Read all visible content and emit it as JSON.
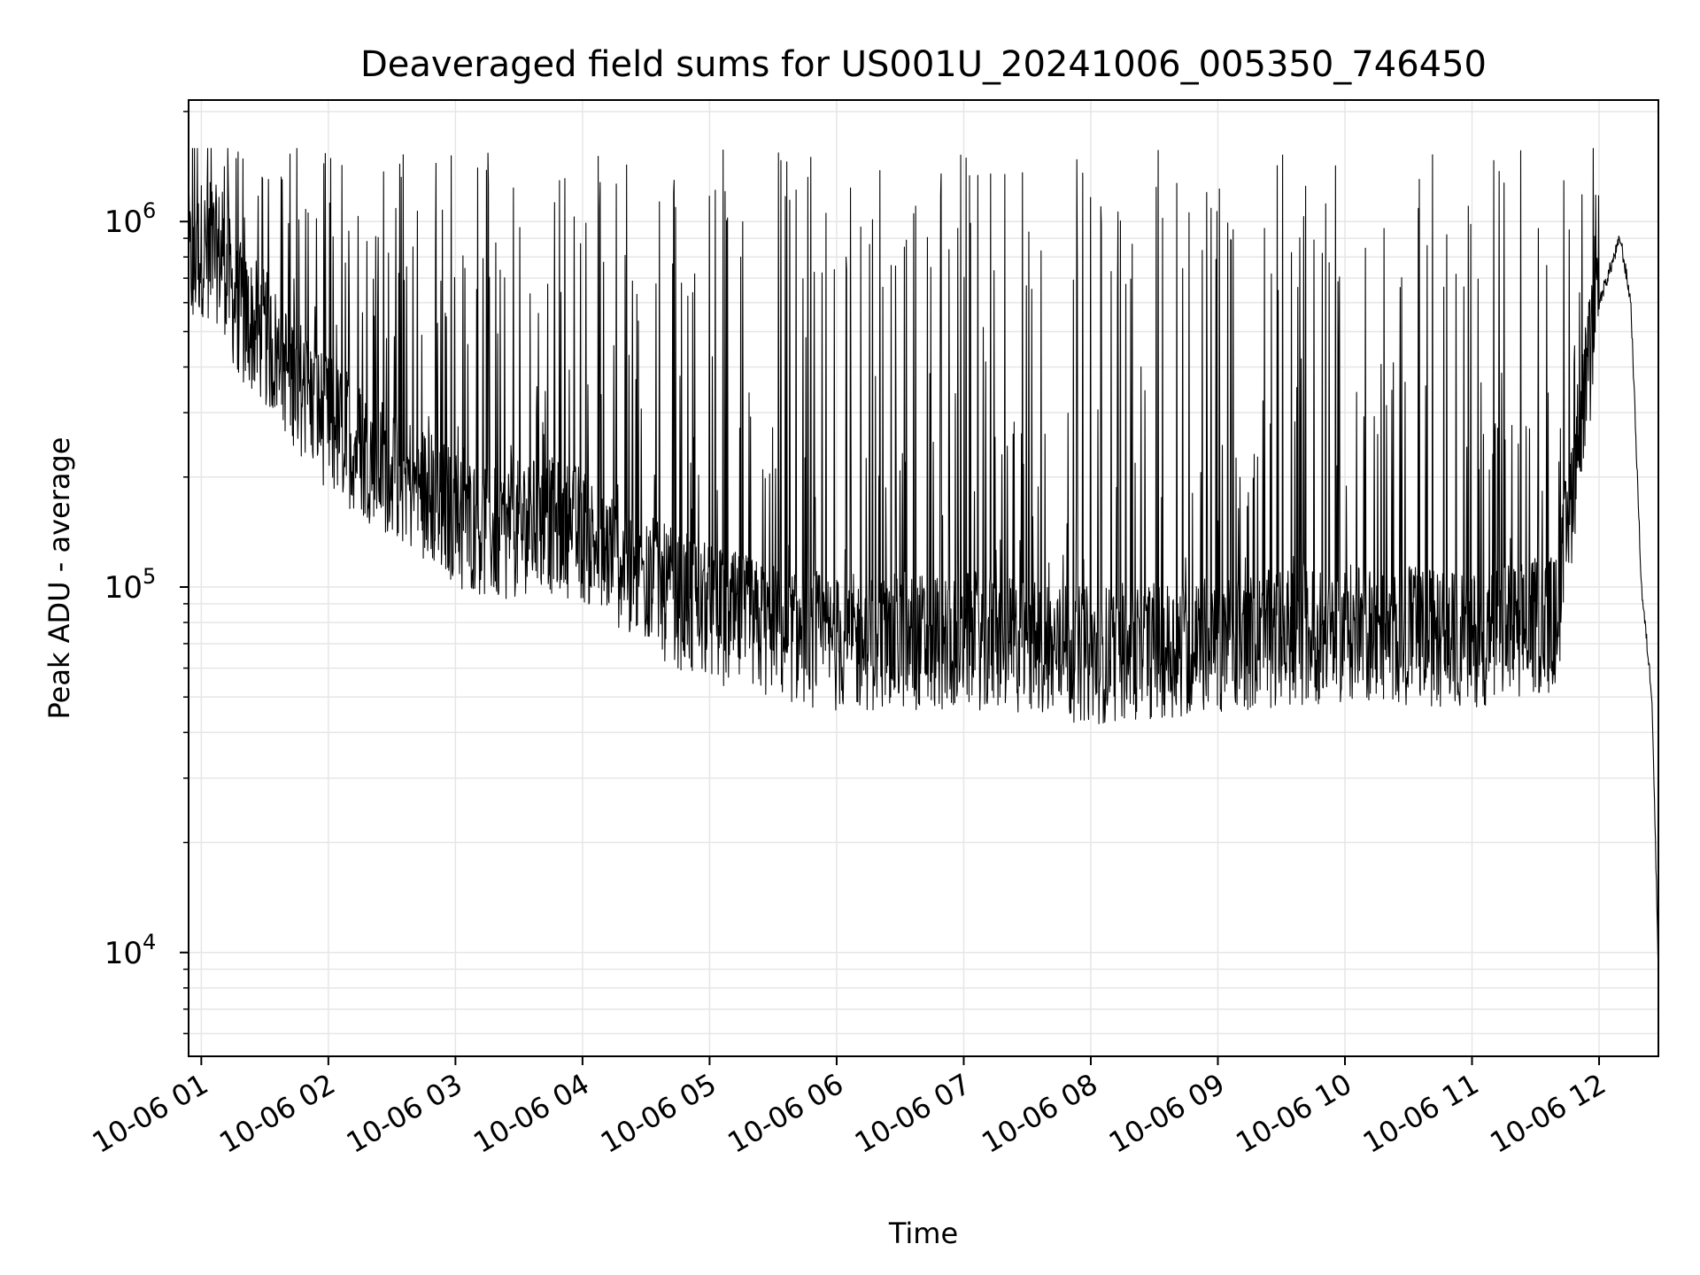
{
  "chart_data": {
    "type": "line",
    "title": "Deaveraged field sums for US001U_20241006_005350_746450",
    "xlabel": "Time",
    "ylabel": "Peak ADU - average",
    "yscale": "log",
    "ylim": [
      5200,
      2150000
    ],
    "xlim": [
      "2024-10-06T00:54",
      "2024-10-06T12:28"
    ],
    "grid": true,
    "colors": {
      "line": "#000000",
      "grid": "#e6e6e6",
      "axes": "#000000"
    },
    "x_ticks": [
      "10-06 01",
      "10-06 02",
      "10-06 03",
      "10-06 04",
      "10-06 05",
      "10-06 06",
      "10-06 07",
      "10-06 08",
      "10-06 09",
      "10-06 10",
      "10-06 11",
      "10-06 12"
    ],
    "x_tick_times": [
      "2024-10-06T01:00",
      "2024-10-06T02:00",
      "2024-10-06T03:00",
      "2024-10-06T04:00",
      "2024-10-06T05:00",
      "2024-10-06T06:00",
      "2024-10-06T07:00",
      "2024-10-06T08:00",
      "2024-10-06T09:00",
      "2024-10-06T10:00",
      "2024-10-06T11:00",
      "2024-10-06T12:00"
    ],
    "y_ticks": [
      {
        "value": 10000,
        "base": "10",
        "exp": "4"
      },
      {
        "value": 100000,
        "base": "10",
        "exp": "5"
      },
      {
        "value": 1000000,
        "base": "10",
        "exp": "6"
      }
    ],
    "series": [
      {
        "x": [
          "2024-10-06T00:54",
          "2024-10-06T01:00",
          "2024-10-06T01:10",
          "2024-10-06T01:15",
          "2024-10-06T01:20",
          "2024-10-06T01:30",
          "2024-10-06T01:40",
          "2024-10-06T02:00",
          "2024-10-06T02:20",
          "2024-10-06T02:40",
          "2024-10-06T03:00",
          "2024-10-06T03:20",
          "2024-10-06T03:40",
          "2024-10-06T04:00",
          "2024-10-06T04:20",
          "2024-10-06T04:40",
          "2024-10-06T05:00",
          "2024-10-06T05:20",
          "2024-10-06T06:00",
          "2024-10-06T07:00",
          "2024-10-06T08:00",
          "2024-10-06T09:00",
          "2024-10-06T10:00",
          "2024-10-06T11:00",
          "2024-10-06T11:40",
          "2024-10-06T11:50",
          "2024-10-06T12:00",
          "2024-10-06T12:10",
          "2024-10-06T12:15",
          "2024-10-06T12:20",
          "2024-10-06T12:25",
          "2024-10-06T12:28"
        ],
        "y": [
          750000,
          850000,
          800000,
          620000,
          550000,
          480000,
          400000,
          280000,
          230000,
          190000,
          155000,
          140000,
          150000,
          140000,
          115000,
          95000,
          85000,
          78000,
          70000,
          72000,
          65000,
          70000,
          75000,
          72000,
          80000,
          250000,
          600000,
          900000,
          600000,
          100000,
          50000,
          9000
        ]
      }
    ]
  }
}
